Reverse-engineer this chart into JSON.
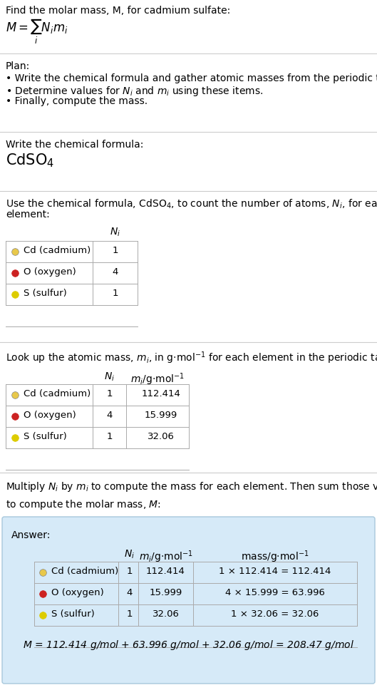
{
  "title_text": "Find the molar mass, M, for cadmium sulfate:",
  "plan_title": "Plan:",
  "plan_bullets": [
    "• Write the chemical formula and gather atomic masses from the periodic table.",
    "• Determine values for $N_i$ and $m_i$ using these items.",
    "• Finally, compute the mass."
  ],
  "step1_title": "Write the chemical formula:",
  "step2_intro_part1": "Use the chemical formula, CdSO",
  "step2_intro_part2": ", to count the number of atoms, ",
  "step2_intro_part3": ", for each\nelement:",
  "step3_intro": "Look up the atomic mass, $m_i$, in g·mol$^{-1}$ for each element in the periodic table:",
  "step4_intro": "Multiply $N_i$ by $m_i$ to compute the mass for each element. Then sum those values\nto compute the molar mass, $M$:",
  "answer_label": "Answer:",
  "dots": [
    "#E8C84A",
    "#CC2222",
    "#DDCC00"
  ],
  "element_labels": [
    "Cd (cadmium)",
    "O (oxygen)",
    "S (sulfur)"
  ],
  "ni_vals": [
    "1",
    "4",
    "1"
  ],
  "mi_vals": [
    "112.414",
    "15.999",
    "32.06"
  ],
  "mass_strs": [
    "1 × 112.414 = 112.414",
    "4 × 15.999 = 63.996",
    "1 × 32.06 = 32.06"
  ],
  "final_answer": "$M$ = 112.414 g/mol + 63.996 g/mol + 32.06 g/mol = 208.47 g/mol",
  "answer_box_color": "#D6EAF8",
  "answer_box_edge": "#A8C8DC",
  "table_line_color": "#AAAAAA",
  "sep_color": "#CCCCCC",
  "bg_color": "#FFFFFF",
  "tc": "#000000",
  "section_bg": "#FFFFFF"
}
